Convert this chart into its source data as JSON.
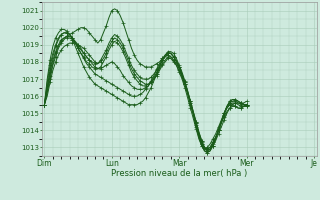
{
  "xlabel": "Pression niveau de la mer( hPa )",
  "ylim": [
    1012.5,
    1021.5
  ],
  "yticks": [
    1013,
    1014,
    1015,
    1016,
    1017,
    1018,
    1019,
    1020,
    1021
  ],
  "xtick_labels": [
    "Dim",
    "Lun",
    "Mar",
    "Mer",
    "Je"
  ],
  "xtick_positions": [
    0,
    24,
    48,
    72,
    96
  ],
  "xlim": [
    -1,
    97
  ],
  "bg_color": "#ceeade",
  "grid_color": "#aaccba",
  "line_color": "#1a5c1a",
  "series": [
    [
      1015.5,
      1016.2,
      1017.0,
      1017.8,
      1018.3,
      1018.8,
      1019.1,
      1019.3,
      1019.5,
      1019.6,
      1019.7,
      1019.8,
      1019.9,
      1020.0,
      1020.0,
      1019.9,
      1019.7,
      1019.5,
      1019.3,
      1019.1,
      1019.3,
      1019.7,
      1020.1,
      1020.6,
      1021.0,
      1021.1,
      1021.0,
      1020.7,
      1020.3,
      1019.8,
      1019.3,
      1018.8,
      1018.4,
      1018.1,
      1017.9,
      1017.8,
      1017.7,
      1017.7,
      1017.7,
      1017.8,
      1017.9,
      1018.0,
      1018.2,
      1018.3,
      1018.4,
      1018.3,
      1018.1,
      1017.8,
      1017.4,
      1017.0,
      1016.5,
      1015.9,
      1015.3,
      1014.7,
      1014.1,
      1013.5,
      1013.1,
      1012.9,
      1013.0,
      1013.2,
      1013.5,
      1013.8,
      1014.2,
      1014.6,
      1015.0,
      1015.3,
      1015.5,
      1015.5,
      1015.4,
      1015.3,
      1015.3,
      1015.4,
      1015.5
    ],
    [
      1015.5,
      1016.0,
      1016.8,
      1017.5,
      1018.0,
      1018.4,
      1018.7,
      1018.9,
      1019.0,
      1019.1,
      1019.1,
      1019.1,
      1019.0,
      1018.9,
      1018.8,
      1018.6,
      1018.4,
      1018.2,
      1018.0,
      1017.9,
      1018.0,
      1018.2,
      1018.5,
      1018.9,
      1019.2,
      1019.4,
      1019.3,
      1019.1,
      1018.8,
      1018.4,
      1018.0,
      1017.6,
      1017.3,
      1017.1,
      1016.9,
      1016.8,
      1016.7,
      1016.7,
      1016.8,
      1017.0,
      1017.2,
      1017.5,
      1017.8,
      1018.0,
      1018.2,
      1018.2,
      1018.0,
      1017.8,
      1017.5,
      1017.1,
      1016.7,
      1016.2,
      1015.7,
      1015.1,
      1014.5,
      1013.9,
      1013.4,
      1013.0,
      1012.9,
      1013.0,
      1013.3,
      1013.6,
      1014.0,
      1014.4,
      1014.8,
      1015.1,
      1015.3,
      1015.4,
      1015.4,
      1015.3,
      1015.3,
      1015.4,
      1015.5
    ],
    [
      1015.5,
      1016.5,
      1017.4,
      1018.1,
      1018.6,
      1019.0,
      1019.3,
      1019.4,
      1019.5,
      1019.5,
      1019.4,
      1019.2,
      1019.0,
      1018.8,
      1018.5,
      1018.3,
      1018.1,
      1017.9,
      1017.7,
      1017.6,
      1017.6,
      1017.7,
      1017.8,
      1017.9,
      1018.0,
      1017.9,
      1017.7,
      1017.5,
      1017.2,
      1017.0,
      1016.8,
      1016.6,
      1016.5,
      1016.4,
      1016.4,
      1016.4,
      1016.5,
      1016.6,
      1016.8,
      1017.0,
      1017.3,
      1017.6,
      1017.9,
      1018.1,
      1018.3,
      1018.3,
      1018.1,
      1017.9,
      1017.6,
      1017.2,
      1016.7,
      1016.2,
      1015.6,
      1015.0,
      1014.4,
      1013.8,
      1013.3,
      1013.0,
      1012.8,
      1012.9,
      1013.1,
      1013.4,
      1013.8,
      1014.2,
      1014.6,
      1015.0,
      1015.3,
      1015.5,
      1015.6,
      1015.6,
      1015.6,
      1015.6,
      1015.7
    ],
    [
      1015.5,
      1016.8,
      1017.8,
      1018.5,
      1019.0,
      1019.4,
      1019.6,
      1019.7,
      1019.7,
      1019.6,
      1019.4,
      1019.1,
      1018.8,
      1018.5,
      1018.2,
      1017.9,
      1017.7,
      1017.5,
      1017.3,
      1017.2,
      1017.1,
      1017.0,
      1016.9,
      1016.8,
      1016.7,
      1016.6,
      1016.5,
      1016.4,
      1016.3,
      1016.2,
      1016.1,
      1016.0,
      1016.0,
      1016.0,
      1016.1,
      1016.2,
      1016.4,
      1016.6,
      1016.9,
      1017.2,
      1017.6,
      1017.9,
      1018.2,
      1018.4,
      1018.5,
      1018.5,
      1018.3,
      1018.0,
      1017.7,
      1017.3,
      1016.8,
      1016.2,
      1015.6,
      1015.0,
      1014.3,
      1013.7,
      1013.2,
      1012.9,
      1012.8,
      1012.9,
      1013.2,
      1013.6,
      1014.0,
      1014.5,
      1015.0,
      1015.4,
      1015.6,
      1015.7,
      1015.7,
      1015.6,
      1015.5,
      1015.5,
      1015.5
    ],
    [
      1015.5,
      1017.0,
      1018.1,
      1018.9,
      1019.4,
      1019.7,
      1019.9,
      1019.9,
      1019.8,
      1019.6,
      1019.3,
      1018.9,
      1018.5,
      1018.1,
      1017.7,
      1017.4,
      1017.1,
      1016.9,
      1016.7,
      1016.6,
      1016.5,
      1016.4,
      1016.3,
      1016.2,
      1016.1,
      1016.0,
      1015.9,
      1015.8,
      1015.7,
      1015.6,
      1015.5,
      1015.5,
      1015.5,
      1015.5,
      1015.6,
      1015.7,
      1015.9,
      1016.2,
      1016.5,
      1016.9,
      1017.3,
      1017.7,
      1018.1,
      1018.4,
      1018.6,
      1018.6,
      1018.5,
      1018.2,
      1017.8,
      1017.4,
      1016.9,
      1016.3,
      1015.7,
      1015.0,
      1014.4,
      1013.7,
      1013.2,
      1012.8,
      1012.7,
      1012.8,
      1013.1,
      1013.5,
      1014.0,
      1014.5,
      1015.0,
      1015.4,
      1015.7,
      1015.8,
      1015.8,
      1015.7,
      1015.6,
      1015.5,
      1015.5
    ],
    [
      1015.5,
      1016.3,
      1017.2,
      1017.9,
      1018.5,
      1018.9,
      1019.2,
      1019.4,
      1019.4,
      1019.4,
      1019.3,
      1019.1,
      1018.9,
      1018.7,
      1018.5,
      1018.3,
      1018.1,
      1018.0,
      1017.9,
      1017.9,
      1018.1,
      1018.4,
      1018.7,
      1019.1,
      1019.4,
      1019.6,
      1019.5,
      1019.3,
      1019.0,
      1018.6,
      1018.2,
      1017.8,
      1017.5,
      1017.3,
      1017.1,
      1017.0,
      1017.0,
      1017.0,
      1017.1,
      1017.3,
      1017.5,
      1017.8,
      1018.1,
      1018.3,
      1018.5,
      1018.5,
      1018.3,
      1018.1,
      1017.7,
      1017.3,
      1016.8,
      1016.3,
      1015.7,
      1015.1,
      1014.5,
      1013.9,
      1013.4,
      1013.0,
      1012.9,
      1013.0,
      1013.3,
      1013.6,
      1014.0,
      1014.5,
      1014.9,
      1015.3,
      1015.5,
      1015.6,
      1015.6,
      1015.5,
      1015.4,
      1015.4,
      1015.4
    ],
    [
      1015.5,
      1016.5,
      1017.5,
      1018.3,
      1018.9,
      1019.3,
      1019.6,
      1019.7,
      1019.7,
      1019.6,
      1019.4,
      1019.1,
      1018.8,
      1018.5,
      1018.3,
      1018.0,
      1017.9,
      1017.7,
      1017.6,
      1017.6,
      1017.7,
      1018.0,
      1018.3,
      1018.7,
      1019.0,
      1019.2,
      1019.1,
      1018.9,
      1018.6,
      1018.2,
      1017.8,
      1017.4,
      1017.1,
      1016.9,
      1016.7,
      1016.6,
      1016.6,
      1016.7,
      1016.8,
      1017.1,
      1017.4,
      1017.7,
      1018.1,
      1018.3,
      1018.5,
      1018.5,
      1018.3,
      1018.0,
      1017.7,
      1017.2,
      1016.7,
      1016.1,
      1015.5,
      1014.9,
      1014.2,
      1013.6,
      1013.1,
      1012.8,
      1012.7,
      1012.8,
      1013.1,
      1013.5,
      1014.0,
      1014.5,
      1015.0,
      1015.4,
      1015.7,
      1015.8,
      1015.8,
      1015.7,
      1015.6,
      1015.5,
      1015.4
    ]
  ]
}
